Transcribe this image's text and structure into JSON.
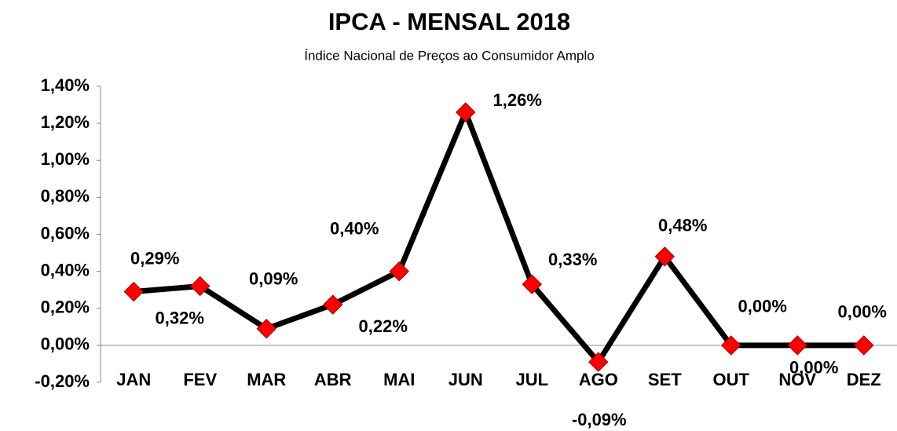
{
  "chart_data": {
    "type": "line",
    "title": "IPCA - MENSAL 2018",
    "subtitle": "Índice Nacional de Preços ao Consumidor Amplo",
    "categories": [
      "JAN",
      "FEV",
      "MAR",
      "ABR",
      "MAI",
      "JUN",
      "JUL",
      "AGO",
      "SET",
      "OUT",
      "NOV",
      "DEZ"
    ],
    "values": [
      0.29,
      0.32,
      0.09,
      0.22,
      0.4,
      1.26,
      0.33,
      -0.09,
      0.48,
      0.0,
      0.0,
      0.0
    ],
    "value_labels": [
      "0,29%",
      "0,32%",
      "0,09%",
      "0,22%",
      "0,40%",
      "1,26%",
      "0,33%",
      "-0,09%",
      "0,48%",
      "0,00%",
      "0,00%",
      "0,00%"
    ],
    "color": "#000000",
    "marker_color": "#ff0000",
    "ylim": [
      -0.2,
      1.4
    ],
    "yticks": [
      {
        "value": -0.2,
        "label": "-0,20%"
      },
      {
        "value": 0,
        "label": "0,00%"
      },
      {
        "value": 0.2,
        "label": "0,20%"
      },
      {
        "value": 0.4,
        "label": "0,40%"
      },
      {
        "value": 0.6,
        "label": "0,60%"
      },
      {
        "value": 0.8,
        "label": "0,80%"
      },
      {
        "value": 1.0,
        "label": "1,00%"
      },
      {
        "value": 1.2,
        "label": "1,20%"
      },
      {
        "value": 1.4,
        "label": "1,40%"
      }
    ],
    "grid": false
  }
}
